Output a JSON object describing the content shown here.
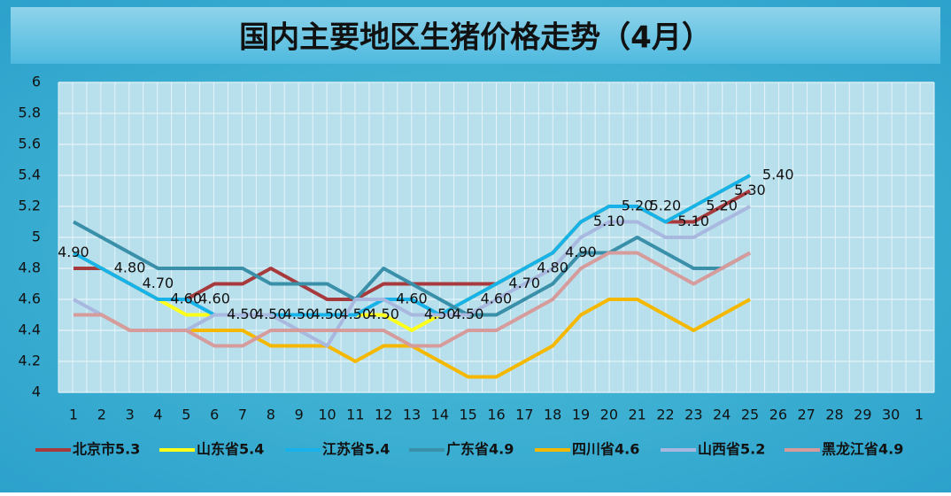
{
  "chart_data": {
    "type": "line",
    "title": "国内主要地区生猪价格走势（4月）",
    "categories": [
      "1",
      "2",
      "3",
      "4",
      "5",
      "6",
      "7",
      "8",
      "9",
      "10",
      "11",
      "12",
      "13",
      "14",
      "15",
      "16",
      "17",
      "18",
      "19",
      "20",
      "21",
      "22",
      "23",
      "24",
      "25",
      "26",
      "27",
      "28",
      "29",
      "30",
      "1"
    ],
    "series": [
      {
        "name": "北京市5.3",
        "color": "#a63a3c",
        "values": [
          4.8,
          4.8,
          4.7,
          4.6,
          4.6,
          4.7,
          4.7,
          4.8,
          4.7,
          4.6,
          4.6,
          4.7,
          4.7,
          4.7,
          4.7,
          4.7,
          4.8,
          4.9,
          5.1,
          5.2,
          5.2,
          5.1,
          5.1,
          5.2,
          5.3,
          null,
          null,
          null,
          null,
          null,
          null
        ]
      },
      {
        "name": "山东省5.4",
        "color": "#ffff1a",
        "values": [
          4.9,
          4.8,
          4.7,
          4.6,
          4.5,
          4.5,
          4.5,
          4.5,
          4.5,
          4.5,
          4.5,
          4.5,
          4.4,
          4.5,
          4.6,
          4.7,
          4.8,
          4.9,
          5.1,
          5.2,
          5.2,
          5.1,
          5.2,
          5.3,
          5.4,
          null,
          null,
          null,
          null,
          null,
          null
        ]
      },
      {
        "name": "江苏省5.4",
        "color": "#17b2ea",
        "values": [
          4.9,
          4.8,
          4.7,
          4.6,
          4.6,
          4.5,
          4.5,
          4.5,
          4.5,
          4.5,
          4.5,
          4.6,
          4.6,
          4.5,
          4.6,
          4.7,
          4.8,
          4.9,
          5.1,
          5.2,
          5.2,
          5.1,
          5.2,
          5.3,
          5.4,
          null,
          null,
          null,
          null,
          null,
          null
        ]
      },
      {
        "name": "广东省4.9",
        "color": "#3a8fa9",
        "values": [
          5.1,
          5.0,
          4.9,
          4.8,
          4.8,
          4.8,
          4.8,
          4.7,
          4.7,
          4.7,
          4.6,
          4.8,
          4.7,
          4.6,
          4.5,
          4.5,
          4.6,
          4.7,
          4.9,
          4.9,
          5.0,
          4.9,
          4.8,
          4.8,
          4.9,
          null,
          null,
          null,
          null,
          null,
          null
        ]
      },
      {
        "name": "四川省4.6",
        "color": "#f5b800",
        "values": [
          4.5,
          4.5,
          4.4,
          4.4,
          4.4,
          4.4,
          4.4,
          4.3,
          4.3,
          4.3,
          4.2,
          4.3,
          4.3,
          4.2,
          4.1,
          4.1,
          4.2,
          4.3,
          4.5,
          4.6,
          4.6,
          4.5,
          4.4,
          4.5,
          4.6,
          null,
          null,
          null,
          null,
          null,
          null
        ]
      },
      {
        "name": "山西省5.2",
        "color": "#a8b8df",
        "values": [
          4.6,
          4.5,
          4.4,
          4.4,
          4.4,
          4.5,
          4.5,
          4.5,
          4.4,
          4.3,
          4.6,
          4.6,
          4.5,
          4.5,
          4.5,
          4.6,
          4.7,
          4.8,
          5.0,
          5.1,
          5.1,
          5.0,
          5.0,
          5.1,
          5.2,
          null,
          null,
          null,
          null,
          null,
          null
        ]
      },
      {
        "name": "黑龙江省4.9",
        "color": "#d69b9b",
        "values": [
          4.5,
          4.5,
          4.4,
          4.4,
          4.4,
          4.3,
          4.3,
          4.4,
          4.4,
          4.4,
          4.4,
          4.4,
          4.3,
          4.3,
          4.4,
          4.4,
          4.5,
          4.6,
          4.8,
          4.9,
          4.9,
          4.8,
          4.7,
          4.8,
          4.9,
          null,
          null,
          null,
          null,
          null,
          null
        ]
      }
    ],
    "annotations": [
      {
        "x": 1,
        "y": 4.9,
        "label": "4.90"
      },
      {
        "x": 3,
        "y": 4.8,
        "label": "4.80"
      },
      {
        "x": 4,
        "y": 4.7,
        "label": "4.70"
      },
      {
        "x": 5,
        "y": 4.6,
        "label": "4.60"
      },
      {
        "x": 6,
        "y": 4.6,
        "label": "4.60"
      },
      {
        "x": 7,
        "y": 4.5,
        "label": "4.50"
      },
      {
        "x": 8,
        "y": 4.5,
        "label": "4.50"
      },
      {
        "x": 9,
        "y": 4.5,
        "label": "4.50"
      },
      {
        "x": 10,
        "y": 4.5,
        "label": "4.50"
      },
      {
        "x": 11,
        "y": 4.5,
        "label": "4.50"
      },
      {
        "x": 12,
        "y": 4.5,
        "label": "4.50"
      },
      {
        "x": 13,
        "y": 4.6,
        "label": "4.60"
      },
      {
        "x": 14,
        "y": 4.5,
        "label": "4.50"
      },
      {
        "x": 15,
        "y": 4.5,
        "label": "4.50"
      },
      {
        "x": 16,
        "y": 4.6,
        "label": "4.60"
      },
      {
        "x": 17,
        "y": 4.7,
        "label": "4.70"
      },
      {
        "x": 18,
        "y": 4.8,
        "label": "4.80"
      },
      {
        "x": 19,
        "y": 4.9,
        "label": "4.90"
      },
      {
        "x": 20,
        "y": 5.1,
        "label": "5.10"
      },
      {
        "x": 21,
        "y": 5.2,
        "label": "5.20"
      },
      {
        "x": 22,
        "y": 5.2,
        "label": "5.20"
      },
      {
        "x": 23,
        "y": 5.1,
        "label": "5.10"
      },
      {
        "x": 24,
        "y": 5.2,
        "label": "5.20"
      },
      {
        "x": 25,
        "y": 5.3,
        "label": "5.30"
      },
      {
        "x": 26,
        "y": 5.4,
        "label": "5.40"
      }
    ],
    "ylim": [
      4,
      6
    ],
    "yticks": [
      4,
      4.2,
      4.4,
      4.6,
      4.8,
      5,
      5.2,
      5.4,
      5.6,
      5.8,
      6
    ],
    "grid": true,
    "legend": "bottom"
  }
}
